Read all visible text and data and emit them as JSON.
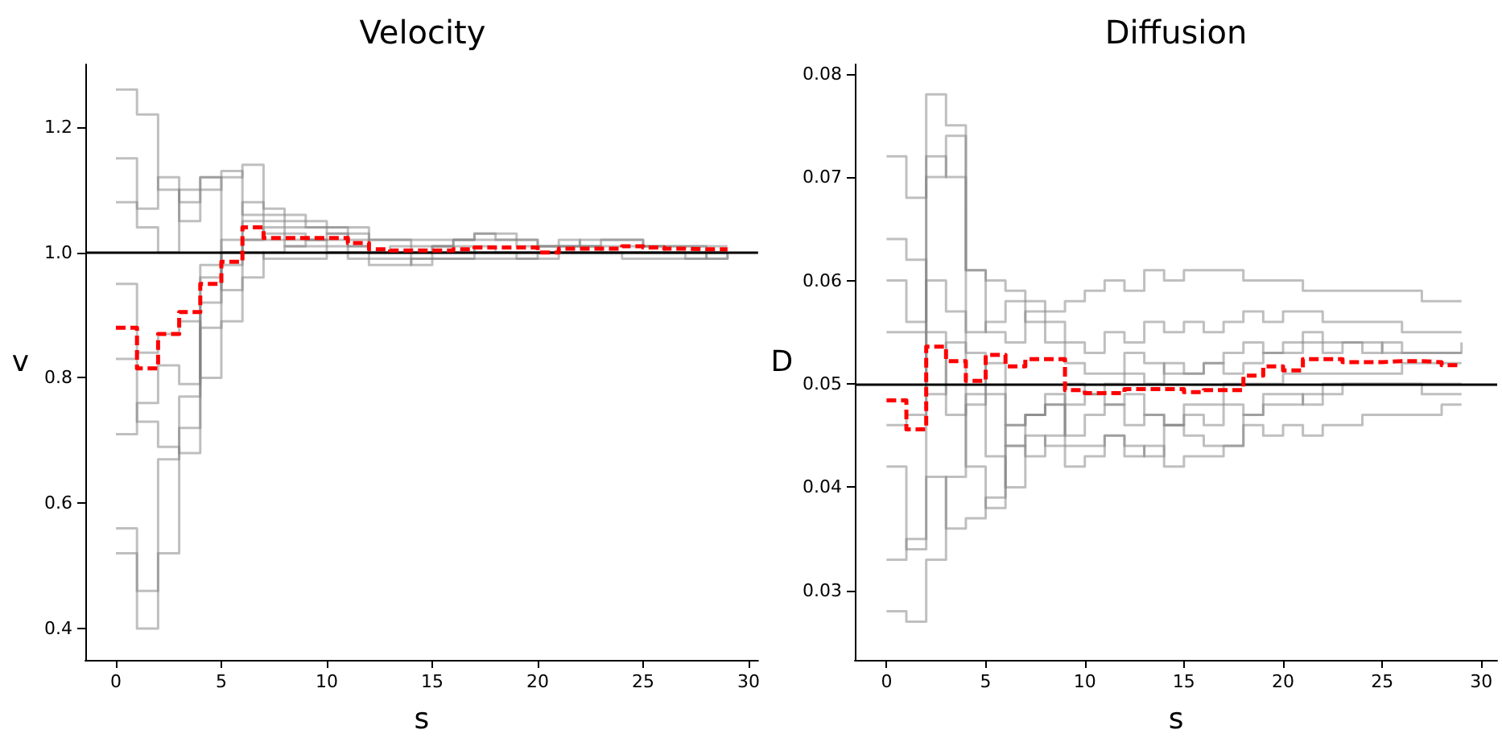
{
  "chart_data": [
    {
      "type": "step",
      "title": "Velocity",
      "xlabel": "s",
      "ylabel": "v",
      "grid": false,
      "marker": "none",
      "x": [
        0,
        1,
        2,
        3,
        4,
        5,
        6,
        7,
        8,
        9,
        10,
        11,
        12,
        13,
        14,
        15,
        16,
        17,
        18,
        19,
        20,
        21,
        22,
        23,
        24,
        25,
        26,
        27,
        28,
        29
      ],
      "xlim": [
        -1.45,
        30.45
      ],
      "xticks": [
        0,
        5,
        10,
        15,
        20,
        25,
        30
      ],
      "ylim": [
        0.35,
        1.3
      ],
      "yticks": [
        0.4,
        0.6,
        0.8,
        {
          "value": 1.0,
          "label": "1.0"
        },
        1.2
      ],
      "ref_lines": [
        {
          "axis": "y",
          "value": 1.0,
          "color": "#000000"
        }
      ],
      "series": [
        {
          "color": "#808080",
          "values": [
            1.26,
            1.22,
            1.1,
            1.05,
            1.12,
            1.13,
            1.06,
            1.05,
            1.04,
            1.04,
            1.03,
            1.03,
            1.02,
            1.02,
            1.01,
            1.01,
            1.02,
            1.02,
            1.02,
            1.01,
            1.01,
            1.01,
            1.01,
            1.01,
            1.01,
            1.01,
            1.0,
            1.0,
            1.0,
            1.0
          ]
        },
        {
          "color": "#808080",
          "values": [
            0.56,
            0.46,
            0.67,
            0.72,
            0.98,
            1.02,
            1.05,
            1.03,
            1.03,
            1.02,
            1.02,
            1.01,
            1.0,
            1.0,
            0.99,
            1.0,
            1.0,
            1.01,
            1.0,
            1.0,
            1.0,
            1.01,
            1.01,
            1.0,
            1.0,
            1.0,
            1.0,
            1.0,
            0.99,
            1.0
          ]
        },
        {
          "color": "#808080",
          "values": [
            0.52,
            0.4,
            0.52,
            0.77,
            0.92,
            1.0,
            1.02,
            1.02,
            1.01,
            1.01,
            1.0,
            1.0,
            0.99,
            0.99,
            0.98,
            0.99,
            0.99,
            1.0,
            1.0,
            1.0,
            1.0,
            1.0,
            1.0,
            1.0,
            1.0,
            1.0,
            1.0,
            1.0,
            1.0,
            1.0
          ]
        },
        {
          "color": "#808080",
          "values": [
            1.15,
            1.07,
            1.12,
            1.08,
            1.1,
            1.12,
            1.14,
            1.06,
            1.05,
            1.05,
            1.04,
            1.04,
            1.02,
            1.02,
            1.02,
            1.02,
            1.02,
            1.03,
            1.02,
            1.02,
            1.01,
            1.01,
            1.02,
            1.02,
            1.02,
            1.01,
            1.01,
            1.01,
            1.01,
            1.01
          ]
        },
        {
          "color": "#808080",
          "values": [
            0.71,
            0.76,
            0.82,
            0.79,
            0.96,
            0.98,
            1.0,
            0.99,
            0.99,
            0.99,
            1.0,
            0.99,
            0.98,
            0.98,
            0.99,
            0.99,
            0.99,
            0.99,
            0.99,
            0.99,
            1.0,
            1.0,
            1.0,
            1.0,
            0.99,
            0.99,
            0.99,
            0.99,
            0.99,
            1.0
          ]
        },
        {
          "color": "#808080",
          "values": [
            1.08,
            1.04,
            1.0,
            1.1,
            1.12,
            0.94,
            0.96,
            1.0,
            1.01,
            1.02,
            1.03,
            1.01,
            1.0,
            1.01,
            1.0,
            1.01,
            1.02,
            1.03,
            1.03,
            1.02,
            1.01,
            1.02,
            1.01,
            1.02,
            1.02,
            1.01,
            1.01,
            1.01,
            1.0,
            1.0
          ]
        },
        {
          "color": "#808080",
          "values": [
            0.83,
            0.73,
            0.69,
            0.68,
            0.88,
            1.0,
            1.08,
            1.07,
            1.06,
            1.04,
            1.04,
            1.02,
            1.0,
            1.0,
            1.0,
            1.0,
            1.01,
            1.0,
            1.0,
            0.99,
            0.99,
            1.0,
            1.0,
            1.0,
            1.0,
            1.0,
            1.0,
            0.99,
            1.0,
            1.0
          ]
        },
        {
          "color": "#808080",
          "values": [
            0.95,
            0.84,
            0.87,
            0.89,
            0.8,
            0.89,
            1.02,
            1.04,
            1.02,
            1.02,
            1.01,
            1.0,
            1.0,
            1.0,
            1.0,
            1.01,
            1.0,
            1.0,
            1.0,
            1.0,
            1.0,
            1.0,
            1.0,
            1.0,
            1.0,
            1.0,
            1.0,
            1.0,
            1.0,
            1.0
          ]
        },
        {
          "color": "#ff0000",
          "line_style": "dashed",
          "values": [
            0.88,
            0.815,
            0.87,
            0.905,
            0.95,
            0.985,
            1.04,
            1.023,
            1.023,
            1.023,
            1.023,
            1.015,
            1.005,
            1.003,
            1.003,
            1.003,
            1.005,
            1.008,
            1.008,
            1.008,
            1.0,
            1.006,
            1.006,
            1.006,
            1.01,
            1.008,
            1.006,
            1.005,
            1.005,
            1.005
          ]
        }
      ]
    },
    {
      "type": "step",
      "title": "Diffusion",
      "xlabel": "s",
      "ylabel": "D",
      "grid": false,
      "marker": "none",
      "x": [
        0,
        1,
        2,
        3,
        4,
        5,
        6,
        7,
        8,
        9,
        10,
        11,
        12,
        13,
        14,
        15,
        16,
        17,
        18,
        19,
        20,
        21,
        22,
        23,
        24,
        25,
        26,
        27,
        28,
        29
      ],
      "xlim": [
        -1.6,
        30.8
      ],
      "xticks": [
        0,
        5,
        10,
        15,
        20,
        25,
        30
      ],
      "ylim": [
        0.0233,
        0.0809
      ],
      "yticks": [
        0.03,
        0.04,
        0.05,
        0.06,
        0.07,
        0.08
      ],
      "ref_lines": [
        {
          "axis": "y",
          "value": 0.05,
          "color": "#000000"
        }
      ],
      "series": [
        {
          "color": "#808080",
          "values": [
            0.055,
            0.055,
            0.072,
            0.07,
            0.061,
            0.06,
            0.059,
            0.058,
            0.057,
            0.058,
            0.059,
            0.06,
            0.059,
            0.061,
            0.06,
            0.061,
            0.061,
            0.061,
            0.06,
            0.06,
            0.06,
            0.059,
            0.059,
            0.059,
            0.059,
            0.059,
            0.059,
            0.058,
            0.058,
            0.058
          ]
        },
        {
          "color": "#808080",
          "values": [
            0.072,
            0.068,
            0.078,
            0.075,
            0.061,
            0.055,
            0.054,
            0.057,
            0.056,
            0.054,
            0.053,
            0.055,
            0.054,
            0.056,
            0.055,
            0.056,
            0.055,
            0.056,
            0.057,
            0.056,
            0.057,
            0.057,
            0.056,
            0.056,
            0.056,
            0.056,
            0.055,
            0.055,
            0.055,
            0.055
          ]
        },
        {
          "color": "#808080",
          "values": [
            0.028,
            0.027,
            0.033,
            0.041,
            0.049,
            0.043,
            0.04,
            0.045,
            0.044,
            0.042,
            0.043,
            0.045,
            0.043,
            0.044,
            0.042,
            0.043,
            0.043,
            0.044,
            0.046,
            0.045,
            0.046,
            0.045,
            0.046,
            0.046,
            0.047,
            0.047,
            0.047,
            0.047,
            0.048,
            0.048
          ]
        },
        {
          "color": "#808080",
          "values": [
            0.033,
            0.035,
            0.07,
            0.074,
            0.053,
            0.049,
            0.046,
            0.047,
            0.048,
            0.045,
            0.047,
            0.048,
            0.046,
            0.047,
            0.046,
            0.047,
            0.046,
            0.048,
            0.047,
            0.049,
            0.049,
            0.048,
            0.049,
            0.05,
            0.05,
            0.05,
            0.05,
            0.049,
            0.049,
            0.049
          ]
        },
        {
          "color": "#808080",
          "values": [
            0.042,
            0.034,
            0.041,
            0.036,
            0.037,
            0.039,
            0.044,
            0.043,
            0.045,
            0.048,
            0.049,
            0.05,
            0.051,
            0.05,
            0.052,
            0.051,
            0.052,
            0.053,
            0.054,
            0.053,
            0.054,
            0.054,
            0.053,
            0.054,
            0.053,
            0.054,
            0.053,
            0.053,
            0.053,
            0.054
          ]
        },
        {
          "color": "#808080",
          "values": [
            0.06,
            0.056,
            0.06,
            0.057,
            0.055,
            0.056,
            0.058,
            0.056,
            0.054,
            0.052,
            0.051,
            0.051,
            0.053,
            0.052,
            0.051,
            0.051,
            0.052,
            0.051,
            0.052,
            0.053,
            0.053,
            0.055,
            0.054,
            0.054,
            0.054,
            0.053,
            0.053,
            0.053,
            0.053,
            0.053
          ]
        },
        {
          "color": "#808080",
          "values": [
            0.046,
            0.047,
            0.055,
            0.047,
            0.048,
            0.052,
            0.044,
            0.047,
            0.049,
            0.044,
            0.044,
            0.045,
            0.044,
            0.043,
            0.046,
            0.045,
            0.044,
            0.044,
            0.047,
            0.048,
            0.048,
            0.049,
            0.05,
            0.05,
            0.05,
            0.05,
            0.05,
            0.05,
            0.05,
            0.05
          ]
        },
        {
          "color": "#808080",
          "values": [
            0.064,
            0.062,
            0.049,
            0.054,
            0.042,
            0.038,
            0.046,
            0.047,
            0.048,
            0.05,
            0.049,
            0.048,
            0.049,
            0.047,
            0.046,
            0.048,
            0.048,
            0.05,
            0.05,
            0.05,
            0.051,
            0.051,
            0.051,
            0.051,
            0.051,
            0.051,
            0.052,
            0.052,
            0.052,
            0.052
          ]
        },
        {
          "color": "#ff0000",
          "line_style": "dashed",
          "values": [
            0.0484,
            0.0456,
            0.0536,
            0.0522,
            0.0503,
            0.0528,
            0.0517,
            0.0524,
            0.0524,
            0.0494,
            0.0491,
            0.0491,
            0.0495,
            0.0495,
            0.0495,
            0.0492,
            0.0494,
            0.0494,
            0.0508,
            0.0517,
            0.0513,
            0.0524,
            0.0524,
            0.0521,
            0.0521,
            0.0522,
            0.0522,
            0.0521,
            0.0518,
            0.0517
          ]
        }
      ]
    }
  ]
}
